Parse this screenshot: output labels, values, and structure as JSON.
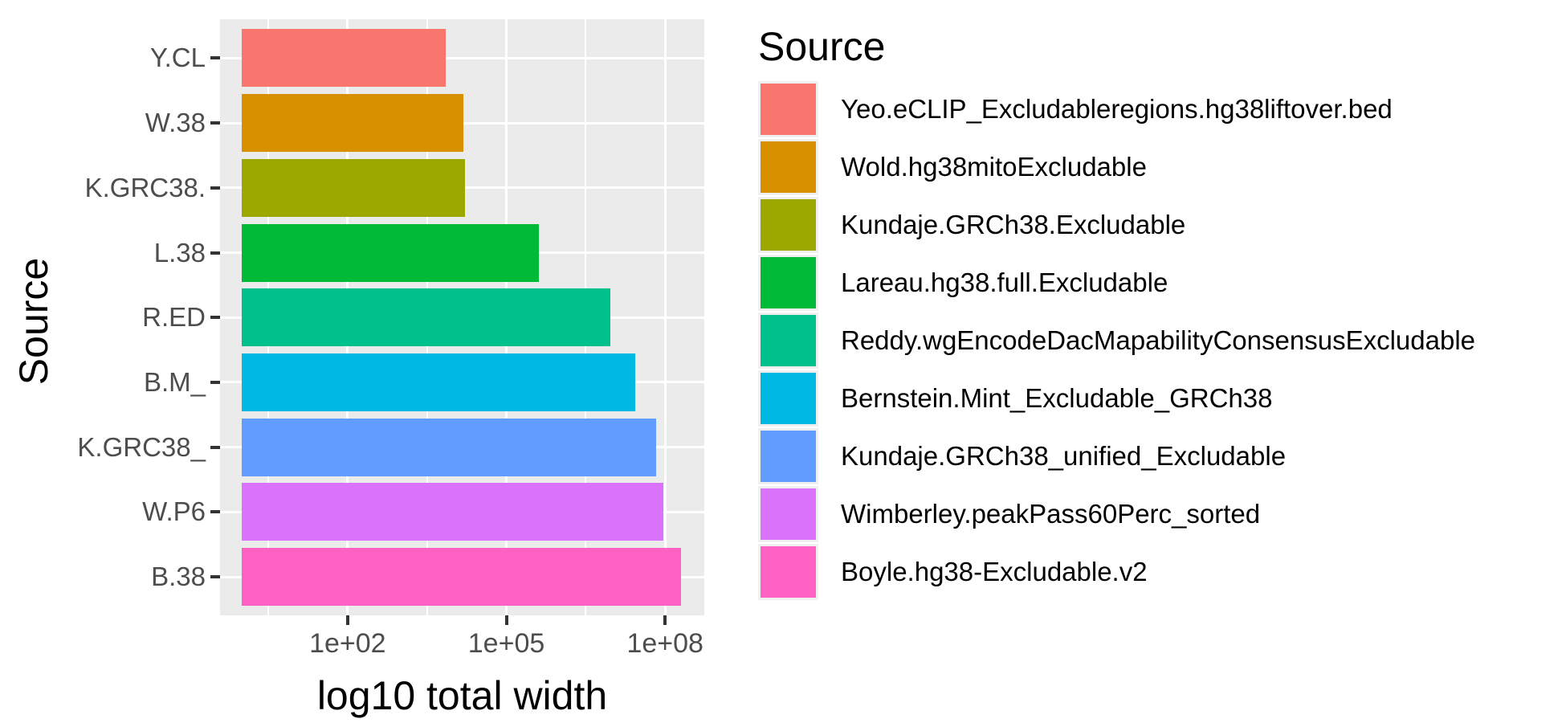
{
  "figure": {
    "background": "#FFFFFF",
    "panel_background": "#EBEBEB",
    "gridline_color": "#FFFFFF",
    "tick_mark_color": "#333333",
    "tick_label_color": "#4D4D4D",
    "title_color": "#000000"
  },
  "y_axis": {
    "title": "Source"
  },
  "x_axis": {
    "title": "log10 total width",
    "tick_labels": [
      "1e+02",
      "1e+05",
      "1e+08"
    ],
    "tick_logs": [
      2,
      5,
      8
    ],
    "minor_logs": [
      0.5,
      3.5,
      6.5
    ],
    "log_min": -0.41,
    "log_max": 8.74,
    "bar_base_log": 0
  },
  "legend": {
    "title": "Source",
    "position": "right"
  },
  "chart_data": {
    "type": "bar",
    "orientation": "horizontal",
    "x_scale": "log10",
    "title": "",
    "xlabel": "log10 total width",
    "ylabel": "Source",
    "grid": true,
    "legend_position": "right",
    "xlim_log10": [
      -0.41,
      8.74
    ],
    "x_tick_labels": [
      "1e+02",
      "1e+05",
      "1e+08"
    ],
    "categories": [
      "Y.CL",
      "W.38",
      "K.GRC38.",
      "L.38",
      "R.ED",
      "B.M_",
      "K.GRC38_",
      "W.P6",
      "B.38"
    ],
    "bars": [
      {
        "abbrev": "Y.CL",
        "source": "Yeo.eCLIP_Excludableregions.hg38liftover.bed",
        "color": "#F8766D",
        "log10_width": 3.85,
        "approx_total_width": 7100
      },
      {
        "abbrev": "W.38",
        "source": "Wold.hg38mitoExcludable",
        "color": "#D89000",
        "log10_width": 4.19,
        "approx_total_width": 15500
      },
      {
        "abbrev": "K.GRC38.",
        "source": "Kundaje.GRCh38.Excludable",
        "color": "#9CA700",
        "log10_width": 4.22,
        "approx_total_width": 16600
      },
      {
        "abbrev": "L.38",
        "source": "Lareau.hg38.full.Excludable",
        "color": "#00BA38",
        "log10_width": 5.62,
        "approx_total_width": 420000
      },
      {
        "abbrev": "R.ED",
        "source": "Reddy.wgEncodeDacMapabilityConsensusExcludable",
        "color": "#00C08B",
        "log10_width": 6.97,
        "approx_total_width": 9300000
      },
      {
        "abbrev": "B.M_",
        "source": "Bernstein.Mint_Excludable_GRCh38",
        "color": "#00B9E3",
        "log10_width": 7.44,
        "approx_total_width": 28000000
      },
      {
        "abbrev": "K.GRC38_",
        "source": "Kundaje.GRCh38_unified_Excludable",
        "color": "#619CFF",
        "log10_width": 7.83,
        "approx_total_width": 68000000
      },
      {
        "abbrev": "W.P6",
        "source": "Wimberley.peakPass60Perc_sorted",
        "color": "#DB72FB",
        "log10_width": 7.97,
        "approx_total_width": 93000000
      },
      {
        "abbrev": "B.38",
        "source": "Boyle.hg38-Excludable.v2",
        "color": "#FF61C3",
        "log10_width": 8.3,
        "approx_total_width": 200000000
      }
    ]
  }
}
